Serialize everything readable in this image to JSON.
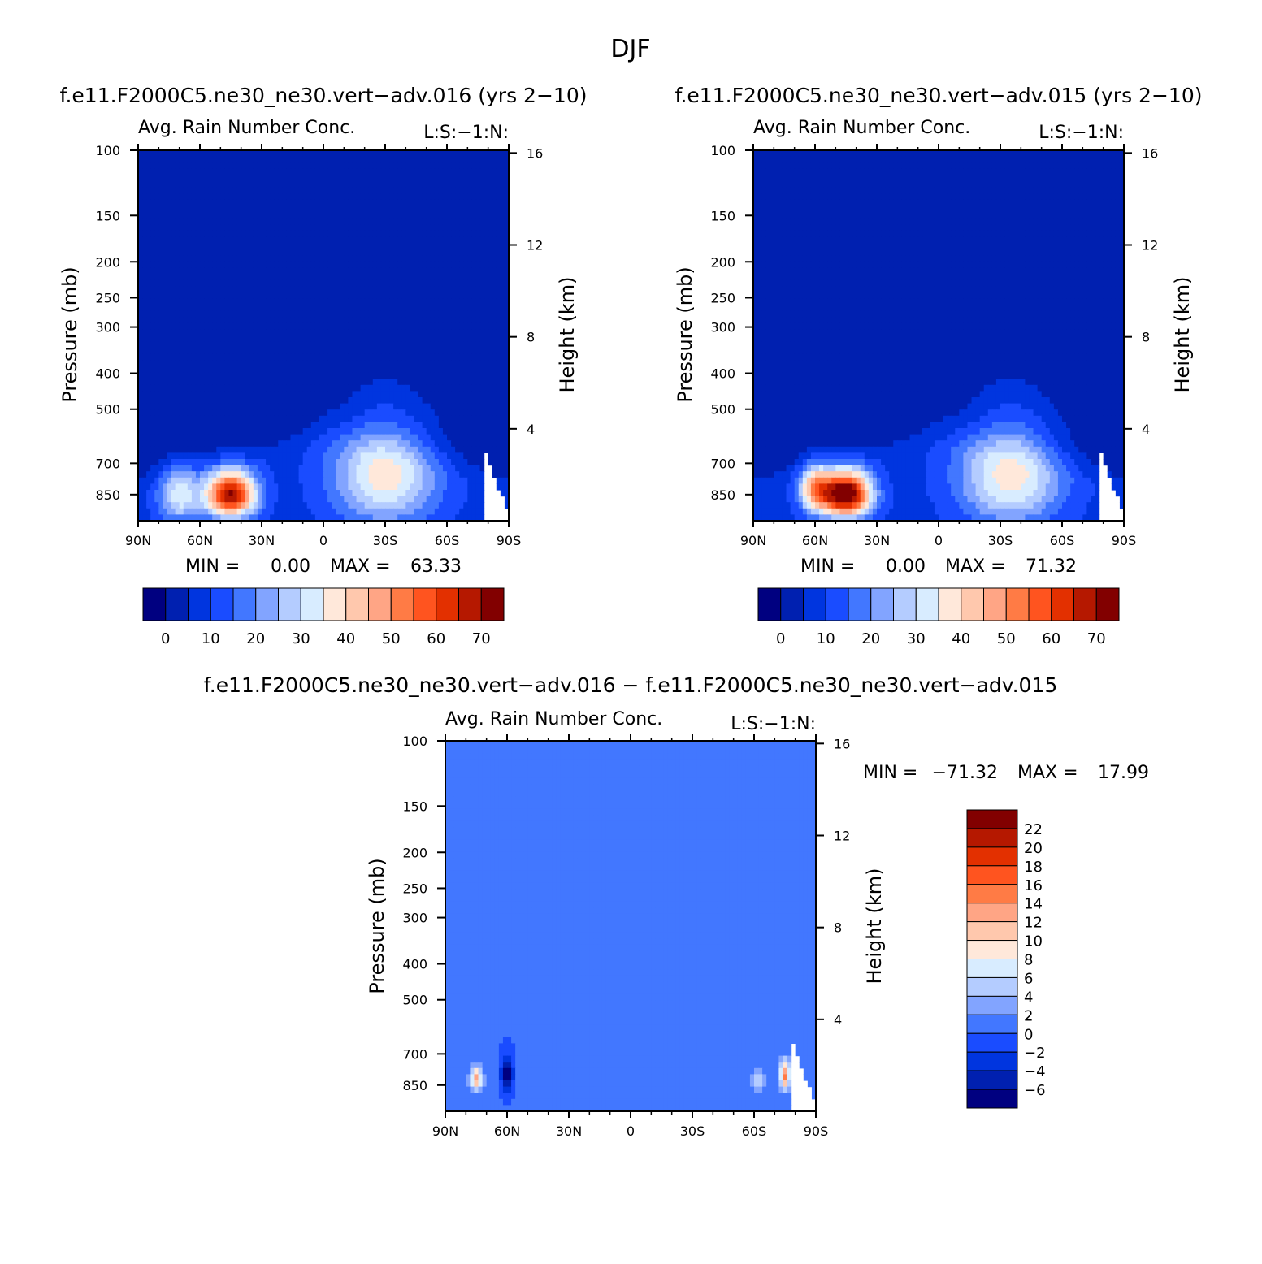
{
  "figure": {
    "title": "DJF"
  },
  "colors": {
    "cmap_top": [
      "#000080",
      "#0020b0",
      "#0035df",
      "#1a4cff",
      "#4277ff",
      "#82a4ff",
      "#b4ccff",
      "#d8ecff",
      "#ffe8da",
      "#ffc8ad",
      "#ffa585",
      "#ff7b45",
      "#ff541f",
      "#e33000",
      "#b51800",
      "#820000"
    ],
    "cmap_diff": [
      "#000080",
      "#0020b0",
      "#0035df",
      "#1a4cff",
      "#4277ff",
      "#82a4ff",
      "#b4ccff",
      "#d8ecff",
      "#ffe8da",
      "#ffc8ad",
      "#ffa585",
      "#ff7b45",
      "#ff541f",
      "#e33000",
      "#b51800",
      "#820000"
    ]
  },
  "chart_data": [
    {
      "type": "heatmap",
      "title": "f.e11.F2000C5.ne30_ne30.vert−adv.016 (yrs 2−10)",
      "subtitle_left": "Avg. Rain Number Conc.",
      "subtitle_right": "L:S:−1:N:",
      "xlabel": "",
      "ylabel": "Pressure (mb)",
      "ylabel_right": "Height (km)",
      "x_ticks": [
        "90N",
        "60N",
        "30N",
        "0",
        "30S",
        "60S",
        "90S"
      ],
      "y_ticks": [
        "100",
        "150",
        "200",
        "250",
        "300",
        "400",
        "500",
        "700",
        "850"
      ],
      "y_right_ticks": [
        "16",
        "12",
        "8",
        "4"
      ],
      "ylim": [
        100,
        1000
      ],
      "y_scale": "log",
      "stats": {
        "min_label": "MIN =",
        "min": "0.00",
        "max_label": "MAX =",
        "max": "63.33"
      },
      "colorbar": {
        "orientation": "horizontal",
        "labels": [
          "0",
          "10",
          "20",
          "30",
          "40",
          "50",
          "60",
          "70"
        ]
      },
      "features": [
        {
          "lat": 45,
          "p": 850,
          "peak": 63.33,
          "lat_width": 12,
          "p_width": 120
        },
        {
          "lat": -30,
          "p": 750,
          "peak": 30,
          "lat_width": 25,
          "p_width": 250
        },
        {
          "lat": 70,
          "p": 850,
          "peak": 25,
          "lat_width": 10,
          "p_width": 150
        }
      ]
    },
    {
      "type": "heatmap",
      "title": "f.e11.F2000C5.ne30_ne30.vert−adv.015 (yrs 2−10)",
      "subtitle_left": "Avg. Rain Number Conc.",
      "subtitle_right": "L:S:−1:N:",
      "xlabel": "",
      "ylabel": "Pressure (mb)",
      "ylabel_right": "Height (km)",
      "x_ticks": [
        "90N",
        "60N",
        "30N",
        "0",
        "30S",
        "60S",
        "90S"
      ],
      "y_ticks": [
        "100",
        "150",
        "200",
        "250",
        "300",
        "400",
        "500",
        "700",
        "850"
      ],
      "y_right_ticks": [
        "16",
        "12",
        "8",
        "4"
      ],
      "ylim": [
        100,
        1000
      ],
      "y_scale": "log",
      "stats": {
        "min_label": "MIN =",
        "min": "0.00",
        "max_label": "MAX =",
        "max": "71.32"
      },
      "colorbar": {
        "orientation": "horizontal",
        "labels": [
          "0",
          "10",
          "20",
          "30",
          "40",
          "50",
          "60",
          "70"
        ]
      },
      "features": [
        {
          "lat": 45,
          "p": 850,
          "peak": 71.32,
          "lat_width": 12,
          "p_width": 120
        },
        {
          "lat": -35,
          "p": 750,
          "peak": 30,
          "lat_width": 25,
          "p_width": 250
        },
        {
          "lat": 60,
          "p": 820,
          "peak": 35,
          "lat_width": 8,
          "p_width": 120
        }
      ]
    },
    {
      "type": "heatmap",
      "title": "f.e11.F2000C5.ne30_ne30.vert−adv.016 − f.e11.F2000C5.ne30_ne30.vert−adv.015",
      "subtitle_left": "Avg. Rain Number Conc.",
      "subtitle_right": "L:S:−1:N:",
      "xlabel": "",
      "ylabel": "Pressure (mb)",
      "ylabel_right": "Height (km)",
      "x_ticks": [
        "90N",
        "60N",
        "30N",
        "0",
        "30S",
        "60S",
        "90S"
      ],
      "y_ticks": [
        "100",
        "150",
        "200",
        "250",
        "300",
        "400",
        "500",
        "700",
        "850"
      ],
      "y_right_ticks": [
        "16",
        "12",
        "8",
        "4"
      ],
      "ylim": [
        100,
        1000
      ],
      "y_scale": "log",
      "stats": {
        "min_label": "MIN =",
        "min": "−71.32",
        "max_label": "MAX =",
        "max": "17.99"
      },
      "colorbar": {
        "orientation": "vertical",
        "labels": [
          "22",
          "20",
          "18",
          "16",
          "14",
          "12",
          "10",
          "8",
          "6",
          "4",
          "2",
          "0",
          "−2",
          "−4",
          "−6"
        ]
      },
      "features": [
        {
          "lat": 75,
          "p": 820,
          "peak": 12,
          "lat_width": 3,
          "p_width": 60
        },
        {
          "lat": -75,
          "p": 800,
          "peak": 14,
          "lat_width": 2.5,
          "p_width": 70
        },
        {
          "lat": 60,
          "p": 800,
          "peak": -8,
          "lat_width": 3,
          "p_width": 100
        },
        {
          "lat": -62,
          "p": 830,
          "peak": 6,
          "lat_width": 3,
          "p_width": 50
        }
      ]
    }
  ]
}
